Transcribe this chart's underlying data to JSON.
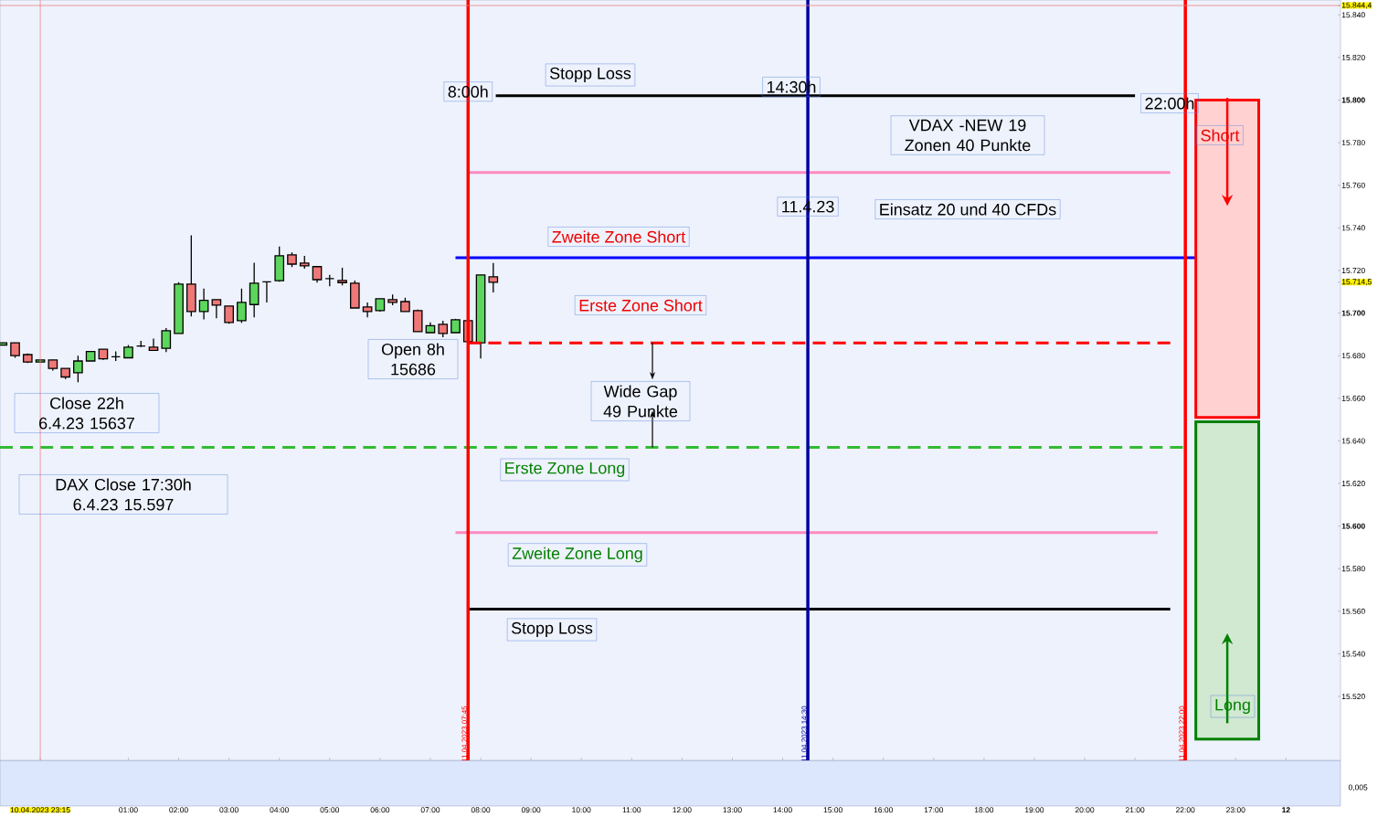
{
  "chart_data": {
    "type": "candlestick",
    "x": [
      "2023-04-10T22:30",
      "2023-04-10T22:45",
      "2023-04-10T23:00",
      "2023-04-10T23:15",
      "2023-04-10T23:30",
      "2023-04-10T23:45",
      "2023-04-11T00:00",
      "2023-04-11T00:15",
      "2023-04-11T00:30",
      "2023-04-11T00:45",
      "2023-04-11T01:00",
      "2023-04-11T01:15",
      "2023-04-11T01:30",
      "2023-04-11T01:45",
      "2023-04-11T02:00",
      "2023-04-11T02:15",
      "2023-04-11T02:30",
      "2023-04-11T02:45",
      "2023-04-11T03:00",
      "2023-04-11T03:15",
      "2023-04-11T03:30",
      "2023-04-11T03:45",
      "2023-04-11T04:00",
      "2023-04-11T04:15",
      "2023-04-11T04:30",
      "2023-04-11T04:45",
      "2023-04-11T05:00",
      "2023-04-11T05:15",
      "2023-04-11T05:30",
      "2023-04-11T05:45",
      "2023-04-11T06:00",
      "2023-04-11T06:15",
      "2023-04-11T06:30",
      "2023-04-11T06:45",
      "2023-04-11T07:00",
      "2023-04-11T07:15",
      "2023-04-11T07:30",
      "2023-04-11T07:45",
      "2023-04-11T08:00",
      "2023-04-11T08:15"
    ],
    "ohlc": [
      [
        15685,
        15686,
        15685,
        15686
      ],
      [
        15686,
        15686,
        15679,
        15680
      ],
      [
        15680.5,
        15681,
        15676.5,
        15677
      ],
      [
        15677,
        15678,
        15677,
        15678
      ],
      [
        15678,
        15678,
        15673,
        15674
      ],
      [
        15674,
        15674,
        15669,
        15670
      ],
      [
        15672,
        15680,
        15667.5,
        15677.5
      ],
      [
        15677.5,
        15682,
        15677.5,
        15682
      ],
      [
        15683,
        15683,
        15678,
        15678.5
      ],
      [
        15679.5,
        15682,
        15677.5,
        15679.5
      ],
      [
        15679,
        15685,
        15679,
        15684
      ],
      [
        15684.5,
        15687,
        15684,
        15684.5
      ],
      [
        15684,
        15688,
        15682.5,
        15682.5
      ],
      [
        15683.5,
        15693,
        15681.7,
        15691.7
      ],
      [
        15690.4,
        15714.5,
        15690.4,
        15713.6
      ],
      [
        15713.6,
        15736.5,
        15698.4,
        15700.7
      ],
      [
        15700.7,
        15711.5,
        15697,
        15706
      ],
      [
        15706.3,
        15706.3,
        15697.6,
        15703.7
      ],
      [
        15703.3,
        15703.3,
        15695,
        15695.6
      ],
      [
        15696.4,
        15711.5,
        15695.4,
        15705
      ],
      [
        15704,
        15723.6,
        15698,
        15714
      ],
      [
        15714.7,
        15714.7,
        15705,
        15714.7
      ],
      [
        15715.2,
        15731.3,
        15714.7,
        15726.9
      ],
      [
        15727.3,
        15728.5,
        15721.6,
        15723
      ],
      [
        15723.5,
        15726.9,
        15720.8,
        15722.2
      ],
      [
        15721.8,
        15721.8,
        15714.3,
        15715.7
      ],
      [
        15716.2,
        15717.9,
        15712.6,
        15716.2
      ],
      [
        15715.3,
        15721.3,
        15713,
        15714.3
      ],
      [
        15714,
        15715.3,
        15702.4,
        15702.4
      ],
      [
        15702.9,
        15705,
        15698,
        15700.7
      ],
      [
        15701.2,
        15706.7,
        15700.7,
        15706.7
      ],
      [
        15706.3,
        15708.7,
        15703.7,
        15705
      ],
      [
        15705.4,
        15707.2,
        15700.7,
        15700.7
      ],
      [
        15701.2,
        15701.6,
        15691.3,
        15691.3
      ],
      [
        15690.8,
        15695.6,
        15690.8,
        15694.1
      ],
      [
        15694.7,
        15696.4,
        15688.7,
        15690.4
      ],
      [
        15690.8,
        15697.3,
        15690.8,
        15696.9
      ],
      [
        15696.4,
        15696.4,
        15686.6,
        15686.6
      ],
      [
        15686,
        15718,
        15678.7,
        15717.9
      ],
      [
        15717,
        15723.5,
        15709.7,
        15714.5
      ]
    ],
    "colors": [
      "#5cd65c",
      "#ee7777",
      "#ee7777",
      "#5cd65c",
      "#ee7777",
      "#ee7777",
      "#5cd65c",
      "#5cd65c",
      "#ee7777",
      "#000000",
      "#5cd65c",
      "#000000",
      "#ee7777",
      "#5cd65c",
      "#5cd65c",
      "#ee7777",
      "#5cd65c",
      "#ee7777",
      "#ee7777",
      "#5cd65c",
      "#5cd65c",
      "#000000",
      "#5cd65c",
      "#ee7777",
      "#ee7777",
      "#ee7777",
      "#000000",
      "#ee7777",
      "#ee7777",
      "#ee7777",
      "#5cd65c",
      "#ee7777",
      "#ee7777",
      "#ee7777",
      "#5cd65c",
      "#ee7777",
      "#5cd65c",
      "#ee7777",
      "#5cd65c",
      "#ee7777"
    ],
    "series": [
      {
        "type": "line",
        "color": "#000000",
        "x": [
          "2023-04-11T08:18",
          "2023-04-11T21:00"
        ],
        "values": [
          15802,
          15802
        ]
      },
      {
        "type": "line",
        "color": "#ff88c0",
        "x": [
          "2023-04-11T07:45",
          "2023-04-11T21:42"
        ],
        "values": [
          15766,
          15766
        ]
      },
      {
        "type": "line",
        "color": "#0000ff",
        "x": [
          "2023-04-11T07:30",
          "2023-04-11T22:12"
        ],
        "values": [
          15726,
          15726
        ]
      },
      {
        "type": "line",
        "color": "#ff0000",
        "line_style": "dashed",
        "x": [
          "2023-04-11T07:45",
          "2023-04-11T21:42"
        ],
        "values": [
          15686,
          15686
        ]
      },
      {
        "type": "line",
        "color": "#33bb33",
        "line_style": "dashed",
        "x": [
          "2023-04-10T22:27",
          "2023-04-11T21:57"
        ],
        "values": [
          15637,
          15637
        ]
      },
      {
        "type": "line",
        "color": "#ff88c0",
        "x": [
          "2023-04-11T07:30",
          "2023-04-11T21:27"
        ],
        "values": [
          15597,
          15597
        ]
      },
      {
        "type": "line",
        "color": "#000000",
        "x": [
          "2023-04-11T07:45",
          "2023-04-11T21:42"
        ],
        "values": [
          15561,
          15561
        ]
      },
      {
        "type": "bar",
        "color": "#ff0000",
        "x": [
          "2023-04-11T22:50"
        ],
        "base": [
          15651
        ],
        "values": [
          149
        ]
      },
      {
        "type": "bar",
        "color": "#008000",
        "x": [
          "2023-04-11T22:50"
        ],
        "base": [
          15500
        ],
        "values": [
          149
        ]
      }
    ],
    "ref_lines": [
      {
        "axis": "x",
        "value": "2023-04-10T23:15",
        "color": "#f08080"
      },
      {
        "axis": "x",
        "value": "2023-04-11T07:45",
        "label": "11.04.2023 07:45",
        "color": "#ff0000"
      },
      {
        "axis": "x",
        "value": "2023-04-11T14:30",
        "label": "11.04.2023 14:30",
        "color": "#0000a0"
      },
      {
        "axis": "x",
        "value": "2023-04-11T22:00",
        "label": "11.04.2023 22:00",
        "color": "#ff0000"
      },
      {
        "axis": "y",
        "value": 15844.4,
        "color": "#f08080"
      }
    ],
    "annotations": [
      {
        "text": "8:00h",
        "x": "2023-04-11T07:45",
        "y": 15804
      },
      "Stopp Loss",
      "14:30h",
      "22:00h",
      "VDAX -NEW 19 Zonen 40 Punkte",
      {
        "text": "11.4.23",
        "x": "2023-04-11T14:30",
        "y": 15750
      },
      "Einsatz 20 und 40 CFDs",
      "Zweite Zone Short",
      "Erste Zone Short",
      "Open 8h 15686",
      "Wide Gap 49 Punkte",
      "Close 22h 6.4.23 15637",
      "DAX Close 17:30h  6.4.23 15.597",
      "Erste Zone Long",
      "Zweite Zone Long",
      "Stopp Loss",
      "Short",
      "Long",
      "0,005"
    ],
    "xlim": [
      "2023-04-10T22:27",
      "2023-04-12T01:05"
    ],
    "ylim": [
      15490,
      15847
    ],
    "xticks": [
      {
        "value": "2023-04-10T23:15",
        "label": "10.04.2023 23:15"
      },
      {
        "value": "2023-04-11T01:00",
        "label": "01:00"
      },
      {
        "value": "2023-04-11T02:00",
        "label": "02:00"
      },
      {
        "value": "2023-04-11T03:00",
        "label": "03:00"
      },
      {
        "value": "2023-04-11T04:00",
        "label": "04:00"
      },
      {
        "value": "2023-04-11T05:00",
        "label": "05:00"
      },
      {
        "value": "2023-04-11T06:00",
        "label": "06:00"
      },
      {
        "value": "2023-04-11T07:00",
        "label": "07:00"
      },
      {
        "value": "2023-04-11T08:00",
        "label": "08:00"
      },
      {
        "value": "2023-04-11T09:00",
        "label": "09:00"
      },
      {
        "value": "2023-04-11T10:00",
        "label": "10:00"
      },
      {
        "value": "2023-04-11T11:00",
        "label": "11:00"
      },
      {
        "value": "2023-04-11T12:00",
        "label": "12:00"
      },
      {
        "value": "2023-04-11T13:00",
        "label": "13:00"
      },
      {
        "value": "2023-04-11T14:00",
        "label": "14:00"
      },
      {
        "value": "2023-04-11T15:00",
        "label": "15:00"
      },
      {
        "value": "2023-04-11T16:00",
        "label": "16:00"
      },
      {
        "value": "2023-04-11T17:00",
        "label": "17:00"
      },
      {
        "value": "2023-04-11T18:00",
        "label": "18:00"
      },
      {
        "value": "2023-04-11T19:00",
        "label": "19:00"
      },
      {
        "value": "2023-04-11T20:00",
        "label": "20:00"
      },
      {
        "value": "2023-04-11T21:00",
        "label": "21:00"
      },
      {
        "value": "2023-04-11T22:00",
        "label": "22:00"
      },
      {
        "value": "2023-04-11T23:00",
        "label": "23:00"
      },
      {
        "value": "2023-04-12T00:00",
        "label": "12"
      }
    ],
    "yticks": [
      {
        "value": 15520,
        "label": "15.520"
      },
      {
        "value": 15540,
        "label": "15.540"
      },
      {
        "value": 15560,
        "label": "15.560"
      },
      {
        "value": 15580,
        "label": "15.580"
      },
      {
        "value": 15600,
        "label": "15.600"
      },
      {
        "value": 15620,
        "label": "15.620"
      },
      {
        "value": 15640,
        "label": "15.640"
      },
      {
        "value": 15660,
        "label": "15.660"
      },
      {
        "value": 15680,
        "label": "15.680"
      },
      {
        "value": 15700,
        "label": "15.700"
      },
      {
        "value": 15714.5,
        "label": "15.714,5"
      },
      {
        "value": 15720,
        "label": "15.720"
      },
      {
        "value": 15740,
        "label": "15.740"
      },
      {
        "value": 15760,
        "label": "15.760"
      },
      {
        "value": 15780,
        "label": "15.780"
      },
      {
        "value": 15800,
        "label": "15.800"
      },
      {
        "value": 15820,
        "label": "15.820"
      },
      {
        "value": 15840,
        "label": "15.840"
      },
      {
        "value": 15844.4,
        "label": "15.844,4"
      }
    ]
  }
}
